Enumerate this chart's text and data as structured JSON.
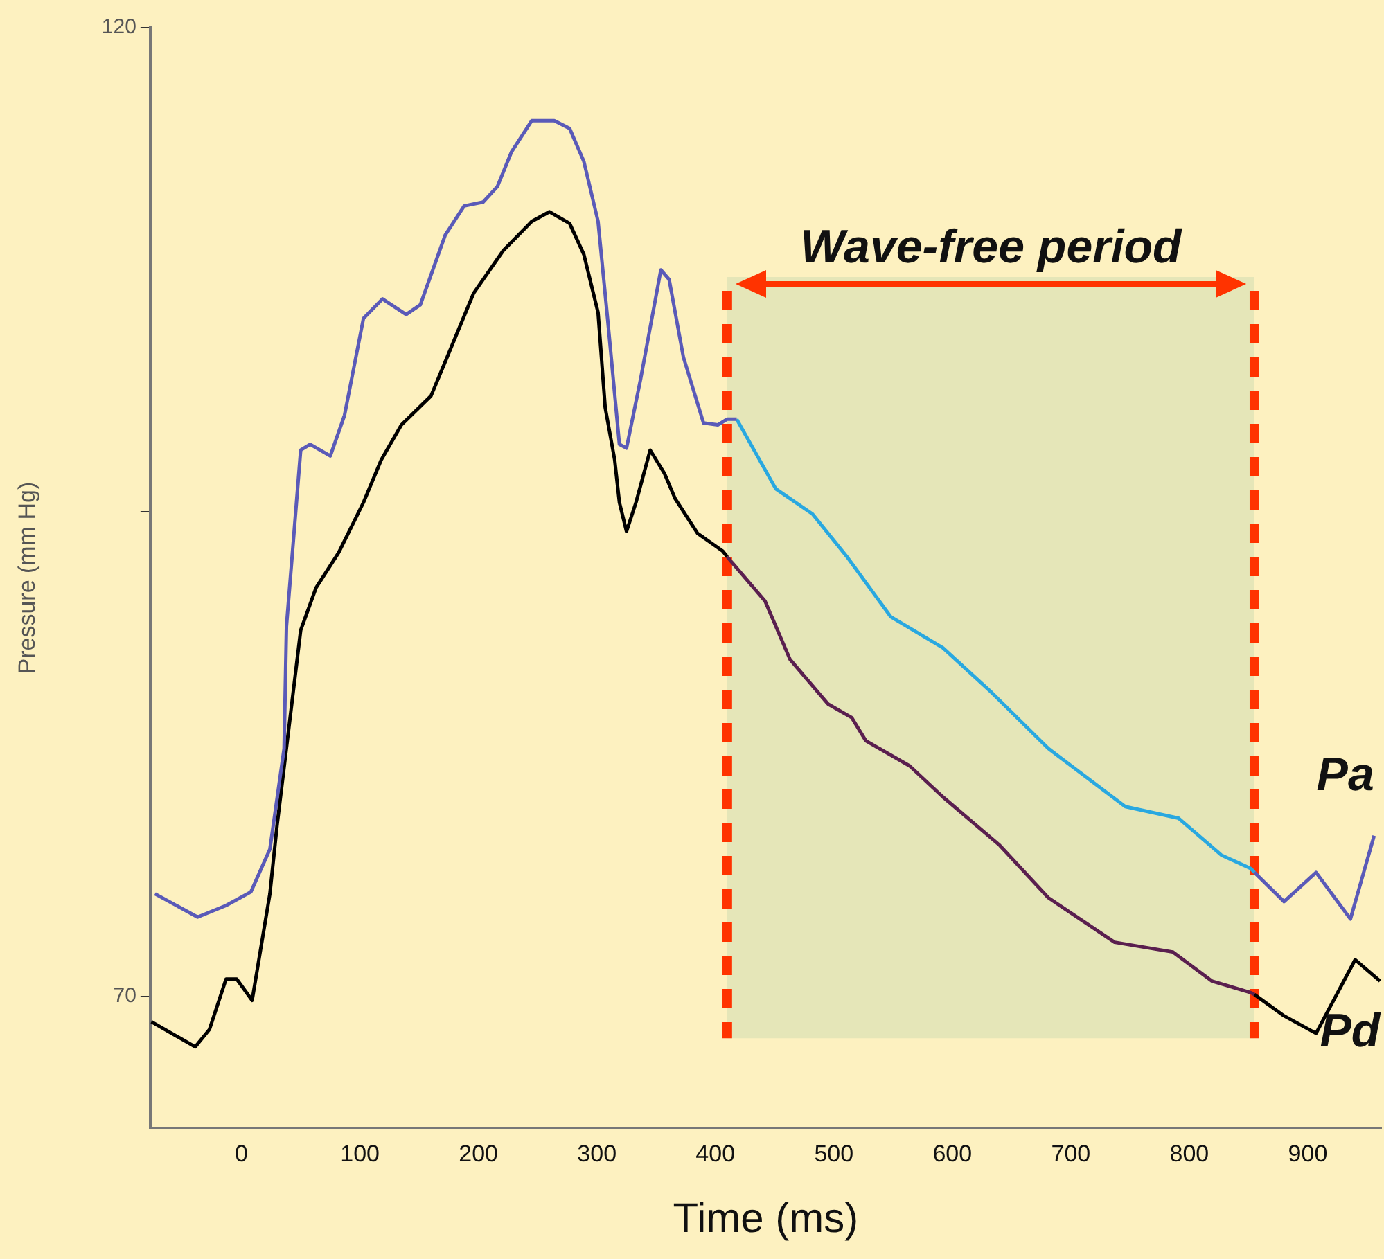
{
  "chart_data": {
    "type": "line",
    "xlabel": "Time (ms)",
    "ylabel": "Pressure (mm Hg)",
    "xlim": [
      -77,
      962
    ],
    "xticks": [
      0,
      100,
      200,
      300,
      400,
      500,
      600,
      700,
      800,
      900
    ],
    "ylim": [
      63.2,
      120
    ],
    "yticks": [
      70,
      {
        "value": 95,
        "label": null
      },
      120
    ],
    "grid": false,
    "legend": false,
    "marker": "none",
    "line_style": "solid",
    "series": [
      {
        "color": "#5a5ab8",
        "x": [
          -73,
          -37,
          -13,
          8,
          24,
          36,
          38,
          50,
          58,
          75,
          87,
          103,
          119,
          139,
          151,
          172,
          188,
          204,
          216,
          228,
          245,
          264,
          277,
          289,
          301,
          309,
          319,
          325,
          337,
          354,
          361,
          373,
          390,
          402,
          410,
          418
        ],
        "values": [
          75.3,
          74.1,
          74.7,
          75.4,
          77.6,
          82.8,
          89.1,
          98.2,
          98.5,
          97.9,
          100.0,
          105.0,
          106.0,
          105.2,
          105.7,
          109.3,
          110.8,
          111.0,
          111.8,
          113.6,
          115.2,
          115.2,
          114.8,
          113.1,
          110.0,
          105.0,
          98.5,
          98.3,
          101.9,
          107.5,
          107.0,
          103.0,
          99.6,
          99.5,
          99.8,
          99.8
        ]
      },
      {
        "color": "#29a8e0",
        "x": [
          418,
          451,
          482,
          511,
          548,
          592,
          633,
          681,
          746,
          791,
          827,
          852,
          855
        ],
        "values": [
          99.8,
          96.2,
          94.9,
          92.7,
          89.6,
          88.0,
          85.7,
          82.8,
          79.8,
          79.2,
          77.3,
          76.6,
          76.4
        ]
      },
      {
        "name": "Pa",
        "color": "#5a5ab8",
        "x": [
          855,
          880,
          907,
          936,
          956
        ],
        "values": [
          76.4,
          74.9,
          76.4,
          74.0,
          78.3
        ]
      },
      {
        "color": "#000000",
        "x": [
          -76,
          -39,
          -27,
          -13,
          -4,
          9,
          15,
          24,
          30,
          50,
          63,
          82,
          103,
          118,
          135,
          160,
          175,
          196,
          221,
          245,
          260,
          277,
          289,
          301,
          307,
          315,
          319,
          325,
          333,
          345,
          357,
          366,
          385,
          406,
          410
        ],
        "values": [
          68.7,
          67.4,
          68.3,
          70.9,
          70.9,
          69.8,
          72.0,
          75.3,
          78.8,
          88.9,
          91.1,
          92.9,
          95.5,
          97.7,
          99.5,
          101.0,
          103.2,
          106.3,
          108.5,
          110.0,
          110.5,
          109.9,
          108.3,
          105.3,
          100.4,
          97.7,
          95.5,
          94.0,
          95.5,
          98.2,
          97.0,
          95.7,
          93.9,
          93.0,
          92.7
        ]
      },
      {
        "color": "#5a1f4f",
        "x": [
          410,
          414,
          442,
          463,
          495,
          515,
          527,
          564,
          592,
          640,
          681,
          737,
          786,
          819,
          852,
          855
        ],
        "values": [
          92.7,
          92.4,
          90.4,
          87.4,
          85.1,
          84.4,
          83.2,
          81.9,
          80.3,
          77.8,
          75.1,
          72.8,
          72.3,
          70.8,
          70.2,
          70.1
        ]
      },
      {
        "name": "Pd",
        "color": "#000000",
        "x": [
          855,
          880,
          907,
          940,
          961
        ],
        "values": [
          70.1,
          69.0,
          68.1,
          71.9,
          70.8
        ]
      }
    ],
    "ref_lines": [
      {
        "axis": "x",
        "value": 410,
        "color": "#ff3300",
        "line_style": "dashed"
      },
      {
        "axis": "x",
        "value": 855,
        "color": "#ff3300",
        "line_style": "dashed"
      }
    ],
    "bands": [
      {
        "axis": "x",
        "from": 410,
        "to": 855,
        "label": "Wave-free period",
        "color": "#e5e6b8"
      }
    ]
  }
}
